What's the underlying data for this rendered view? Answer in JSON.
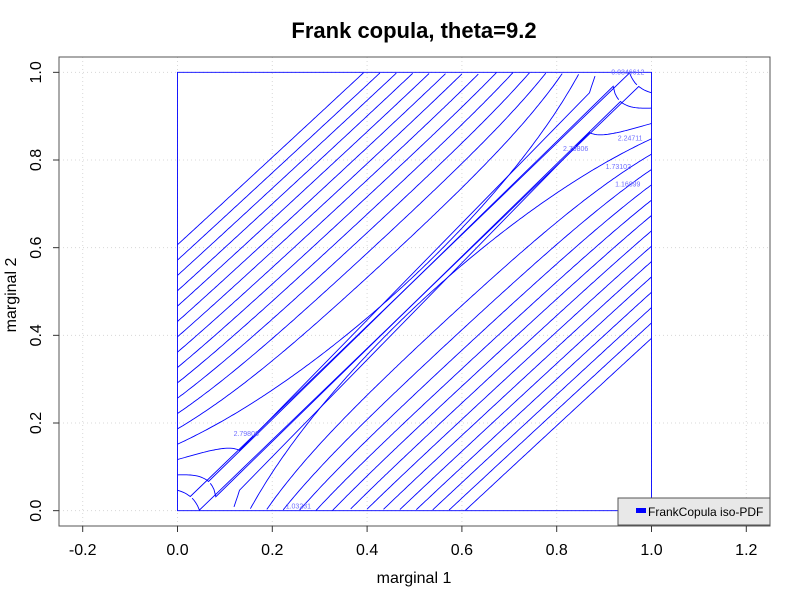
{
  "chart_data": {
    "type": "line",
    "title": "Frank copula, theta=9.2",
    "xlabel": "marginal 1",
    "ylabel": "marginal 2",
    "xlim": [
      -0.25,
      1.25
    ],
    "ylim": [
      -0.035,
      1.035
    ],
    "x_ticks": [
      "-0.2",
      "0.0",
      "0.2",
      "0.4",
      "0.6",
      "0.8",
      "1.0",
      "1.2"
    ],
    "x_tick_values": [
      -0.2,
      0.0,
      0.2,
      0.4,
      0.6,
      0.8,
      1.0,
      1.2
    ],
    "y_ticks": [
      "0.0",
      "0.2",
      "0.4",
      "0.6",
      "0.8",
      "1.0"
    ],
    "y_tick_values": [
      0.0,
      0.2,
      0.4,
      0.6,
      0.8,
      1.0
    ],
    "grid": true,
    "legend_position": "bottom-right",
    "series": [
      {
        "name": "FrankCopula iso-PDF",
        "color": "#0000ff"
      }
    ],
    "contour_labels": [
      {
        "text": "2.79806",
        "x": 0.84,
        "y": 0.82
      },
      {
        "text": "2.24711",
        "x": 0.955,
        "y": 0.845
      },
      {
        "text": "1.73102",
        "x": 0.93,
        "y": 0.78
      },
      {
        "text": "1.16899",
        "x": 0.95,
        "y": 0.74
      },
      {
        "text": "0.0346612",
        "x": 0.95,
        "y": 0.995
      },
      {
        "text": "2.79806",
        "x": 0.145,
        "y": 0.17
      },
      {
        "text": "1.03231",
        "x": 0.255,
        "y": 0.005
      }
    ]
  }
}
